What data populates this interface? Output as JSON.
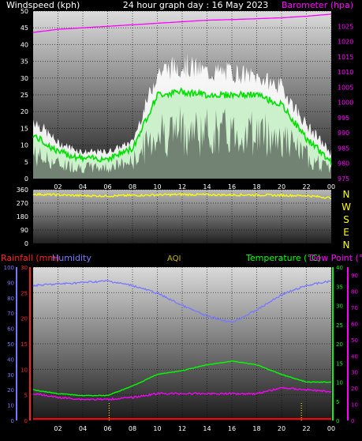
{
  "header": {
    "wind_title": "Windspeed (kph)",
    "graph_title": "24 hour graph day : 16 May 2023",
    "baro_title": "Barometer (hpa)"
  },
  "lower_header": {
    "rain": "Rainfall (mm)",
    "humidity": "Humidity",
    "aqi": "AQI",
    "temp": "Temperature (°C)",
    "dew": "Dew Point (°C"
  },
  "compass": [
    "N",
    "W",
    "S",
    "E",
    "N"
  ],
  "colors": {
    "gust": "#ffffff",
    "wind_avg": "#00e000",
    "wind_fill": "#c8f0c8",
    "barometer": "#ff00ff",
    "direction": "#ffff00",
    "humidity": "#7878ff",
    "temperature": "#00ff00",
    "dew_point": "#ff00ff",
    "rain": "#ff0000"
  },
  "chart_data": [
    {
      "type": "line",
      "title": "24 hour graph day : 16 May 2023",
      "x_ticks": [
        "02",
        "04",
        "06",
        "08",
        "10",
        "12",
        "14",
        "16",
        "18",
        "20",
        "22",
        "00"
      ],
      "x": [
        "00",
        "02",
        "04",
        "06",
        "08",
        "10",
        "12",
        "14",
        "16",
        "18",
        "20",
        "22",
        "00"
      ],
      "left_axis": {
        "label": "Windspeed (kph)",
        "ticks": [
          0,
          5,
          10,
          15,
          20,
          25,
          30,
          35,
          40,
          45,
          50
        ],
        "range": [
          0,
          50
        ]
      },
      "right_axis": {
        "label": "Barometer (hpa)",
        "ticks": [
          975,
          980,
          985,
          990,
          995,
          1000,
          1005,
          1010,
          1015,
          1020,
          1025
        ],
        "range": [
          975,
          1030
        ]
      },
      "series": [
        {
          "name": "Windspeed (kph)",
          "axis": "left",
          "values": [
            13,
            8,
            6,
            6,
            9,
            25,
            26,
            25,
            25,
            25,
            22,
            12,
            5
          ]
        },
        {
          "name": "",
          "axis": "left",
          "values": [
            20,
            12,
            9,
            9,
            12,
            35,
            38,
            35,
            35,
            33,
            30,
            18,
            9
          ]
        },
        {
          "name": "Barometer (hpa)",
          "axis": "right",
          "values": [
            1023,
            1024,
            1024.5,
            1025,
            1025.5,
            1026,
            1026.5,
            1027,
            1027.2,
            1027.5,
            1027.8,
            1028.3,
            1029
          ]
        }
      ]
    },
    {
      "type": "line",
      "x": [
        "00",
        "02",
        "04",
        "06",
        "08",
        "10",
        "12",
        "14",
        "16",
        "18",
        "20",
        "22",
        "00"
      ],
      "left_axis": {
        "ticks": [
          0,
          90,
          180,
          270,
          360
        ],
        "range": [
          0,
          360
        ]
      },
      "right_axis": {
        "ticks": [
          "N",
          "W",
          "S",
          "E",
          "N"
        ]
      },
      "series": [
        {
          "name": "",
          "values": [
            330,
            325,
            320,
            318,
            322,
            325,
            328,
            326,
            325,
            325,
            322,
            320,
            305
          ]
        }
      ]
    },
    {
      "type": "line",
      "x": [
        "00",
        "02",
        "04",
        "06",
        "08",
        "10",
        "12",
        "14",
        "16",
        "18",
        "20",
        "22",
        "00"
      ],
      "axes": {
        "humidity": {
          "ticks": [
            0,
            10,
            20,
            30,
            40,
            50,
            60,
            70,
            80,
            90,
            100
          ],
          "range": [
            0,
            100
          ]
        },
        "rainfall": {
          "ticks": [
            0,
            5,
            10,
            15,
            20,
            25,
            30
          ],
          "range": [
            0,
            30
          ]
        },
        "temperature": {
          "ticks": [
            0,
            5,
            10,
            15,
            20,
            25,
            30,
            35,
            40
          ],
          "range": [
            0,
            40
          ]
        },
        "dew_point": {
          "ticks": [
            0,
            10,
            20,
            30,
            40,
            50,
            60,
            70,
            80,
            90
          ],
          "range": [
            0,
            95
          ]
        }
      },
      "series": [
        {
          "name": "Humidity",
          "axis": "humidity",
          "values": [
            88,
            89,
            90,
            91,
            88,
            83,
            75,
            68,
            64,
            72,
            82,
            88,
            91
          ]
        },
        {
          "name": "Temperature (°C)",
          "axis": "temperature",
          "values": [
            8,
            7,
            6.5,
            6.5,
            9,
            12,
            13,
            14.5,
            15.5,
            14.5,
            12,
            10,
            10
          ]
        },
        {
          "name": "Dew Point (°C",
          "axis": "temperature",
          "values": [
            7,
            6,
            5.5,
            5.5,
            6,
            7,
            7,
            7,
            7,
            7,
            8.5,
            8,
            7.5
          ]
        },
        {
          "name": "Rainfall (mm)",
          "axis": "rainfall",
          "values": [
            0,
            0,
            0,
            0,
            0,
            0,
            0,
            0,
            0,
            0,
            0,
            0,
            0
          ]
        }
      ]
    }
  ]
}
